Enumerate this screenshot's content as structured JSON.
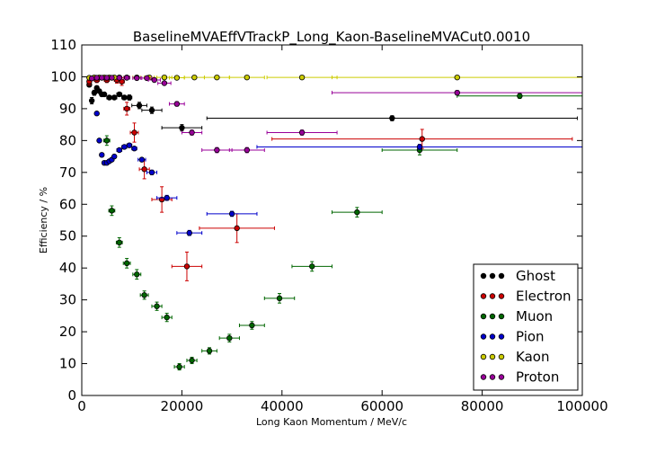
{
  "chart_data": {
    "type": "scatter",
    "title": "BaselineMVAEffVTrackP_Long_Kaon-BaselineMVACut0.0010",
    "xlabel": "Long Kaon Momentum / MeV/c",
    "ylabel": "Efficiency / %",
    "xlim": [
      0,
      100000
    ],
    "ylim": [
      0,
      110
    ],
    "xticks": [
      "0",
      "20000",
      "40000",
      "60000",
      "80000",
      "100000"
    ],
    "yticks": [
      "0",
      "10",
      "20",
      "30",
      "40",
      "50",
      "60",
      "70",
      "80",
      "90",
      "100",
      "110"
    ],
    "legend_position": "lower-right",
    "series": [
      {
        "name": "Ghost",
        "color": "#000000",
        "points": [
          {
            "x": 1500,
            "y": 97.5,
            "xerr": 400,
            "yerr": 0.6
          },
          {
            "x": 2000,
            "y": 92.5,
            "xerr": 300,
            "yerr": 1.0
          },
          {
            "x": 2500,
            "y": 95,
            "xerr": 300,
            "yerr": 0.8
          },
          {
            "x": 3000,
            "y": 96.5,
            "xerr": 300,
            "yerr": 0.6
          },
          {
            "x": 3500,
            "y": 95.5,
            "xerr": 300,
            "yerr": 0.6
          },
          {
            "x": 4000,
            "y": 94.5,
            "xerr": 300,
            "yerr": 0.6
          },
          {
            "x": 4500,
            "y": 94.5,
            "xerr": 300,
            "yerr": 0.6
          },
          {
            "x": 5500,
            "y": 93.5,
            "xerr": 500,
            "yerr": 0.6
          },
          {
            "x": 6500,
            "y": 93.5,
            "xerr": 500,
            "yerr": 0.6
          },
          {
            "x": 7500,
            "y": 94.5,
            "xerr": 500,
            "yerr": 0.6
          },
          {
            "x": 8500,
            "y": 93.5,
            "xerr": 500,
            "yerr": 0.7
          },
          {
            "x": 9500,
            "y": 93.5,
            "xerr": 500,
            "yerr": 0.8
          },
          {
            "x": 11500,
            "y": 91,
            "xerr": 1500,
            "yerr": 1.0
          },
          {
            "x": 14000,
            "y": 89.5,
            "xerr": 2000,
            "yerr": 1.0
          },
          {
            "x": 20000,
            "y": 84,
            "xerr": 4000,
            "yerr": 1.0
          },
          {
            "x": 62000,
            "y": 87,
            "xerr": 37000,
            "yerr": 0.8
          }
        ]
      },
      {
        "name": "Electron",
        "color": "#cc0000",
        "points": [
          {
            "x": 1500,
            "y": 98.5,
            "xerr": 400,
            "yerr": 1.0
          },
          {
            "x": 3000,
            "y": 99,
            "xerr": 500,
            "yerr": 0.8
          },
          {
            "x": 5000,
            "y": 99,
            "xerr": 500,
            "yerr": 0.8
          },
          {
            "x": 7000,
            "y": 99,
            "xerr": 500,
            "yerr": 1.0
          },
          {
            "x": 8000,
            "y": 98.5,
            "xerr": 500,
            "yerr": 1.2
          },
          {
            "x": 9000,
            "y": 90,
            "xerr": 600,
            "yerr": 2.0
          },
          {
            "x": 10500,
            "y": 82.5,
            "xerr": 800,
            "yerr": 3.0
          },
          {
            "x": 12500,
            "y": 71,
            "xerr": 1000,
            "yerr": 3.0
          },
          {
            "x": 16000,
            "y": 61.5,
            "xerr": 2000,
            "yerr": 4.0
          },
          {
            "x": 21000,
            "y": 40.5,
            "xerr": 3000,
            "yerr": 4.5
          },
          {
            "x": 31000,
            "y": 52.5,
            "xerr": 7500,
            "yerr": 4.5
          },
          {
            "x": 68000,
            "y": 80.5,
            "xerr": 30000,
            "yerr": 3.0
          }
        ]
      },
      {
        "name": "Muon",
        "color": "#006600",
        "points": [
          {
            "x": 5000,
            "y": 80,
            "xerr": 600,
            "yerr": 1.5
          },
          {
            "x": 6000,
            "y": 58,
            "xerr": 600,
            "yerr": 1.5
          },
          {
            "x": 7500,
            "y": 48,
            "xerr": 600,
            "yerr": 1.5
          },
          {
            "x": 9000,
            "y": 41.5,
            "xerr": 700,
            "yerr": 1.5
          },
          {
            "x": 11000,
            "y": 38,
            "xerr": 800,
            "yerr": 1.5
          },
          {
            "x": 12500,
            "y": 31.5,
            "xerr": 800,
            "yerr": 1.3
          },
          {
            "x": 15000,
            "y": 28,
            "xerr": 1000,
            "yerr": 1.3
          },
          {
            "x": 17000,
            "y": 24.5,
            "xerr": 1000,
            "yerr": 1.3
          },
          {
            "x": 19500,
            "y": 9,
            "xerr": 1000,
            "yerr": 1.0
          },
          {
            "x": 22000,
            "y": 11,
            "xerr": 1000,
            "yerr": 1.0
          },
          {
            "x": 25500,
            "y": 14,
            "xerr": 1500,
            "yerr": 1.0
          },
          {
            "x": 29500,
            "y": 18,
            "xerr": 2000,
            "yerr": 1.2
          },
          {
            "x": 34000,
            "y": 22,
            "xerr": 2500,
            "yerr": 1.2
          },
          {
            "x": 39500,
            "y": 30.5,
            "xerr": 3000,
            "yerr": 1.5
          },
          {
            "x": 46000,
            "y": 40.5,
            "xerr": 4000,
            "yerr": 1.5
          },
          {
            "x": 55000,
            "y": 57.5,
            "xerr": 5000,
            "yerr": 1.5
          },
          {
            "x": 67500,
            "y": 77,
            "xerr": 7500,
            "yerr": 1.5
          },
          {
            "x": 87500,
            "y": 94,
            "xerr": 12500,
            "yerr": 0.8
          }
        ]
      },
      {
        "name": "Pion",
        "color": "#0000cc",
        "points": [
          {
            "x": 3000,
            "y": 88.5,
            "xerr": 300,
            "yerr": 0.5
          },
          {
            "x": 3500,
            "y": 80,
            "xerr": 300,
            "yerr": 0.5
          },
          {
            "x": 4000,
            "y": 75.5,
            "xerr": 300,
            "yerr": 0.5
          },
          {
            "x": 4500,
            "y": 73,
            "xerr": 300,
            "yerr": 0.5
          },
          {
            "x": 5000,
            "y": 73,
            "xerr": 300,
            "yerr": 0.5
          },
          {
            "x": 5500,
            "y": 73.5,
            "xerr": 300,
            "yerr": 0.5
          },
          {
            "x": 6000,
            "y": 74,
            "xerr": 300,
            "yerr": 0.5
          },
          {
            "x": 6500,
            "y": 75,
            "xerr": 300,
            "yerr": 0.5
          },
          {
            "x": 7500,
            "y": 77,
            "xerr": 500,
            "yerr": 0.5
          },
          {
            "x": 8500,
            "y": 78,
            "xerr": 500,
            "yerr": 0.5
          },
          {
            "x": 9500,
            "y": 78.5,
            "xerr": 500,
            "yerr": 0.5
          },
          {
            "x": 10500,
            "y": 77.5,
            "xerr": 500,
            "yerr": 0.5
          },
          {
            "x": 12000,
            "y": 74,
            "xerr": 750,
            "yerr": 0.6
          },
          {
            "x": 14000,
            "y": 70,
            "xerr": 1000,
            "yerr": 0.7
          },
          {
            "x": 17000,
            "y": 62,
            "xerr": 2000,
            "yerr": 0.8
          },
          {
            "x": 21500,
            "y": 51,
            "xerr": 2500,
            "yerr": 0.8
          },
          {
            "x": 30000,
            "y": 57,
            "xerr": 5000,
            "yerr": 0.8
          },
          {
            "x": 67500,
            "y": 78,
            "xerr": 32500,
            "yerr": 0.8
          }
        ]
      },
      {
        "name": "Kaon",
        "color": "#cccc00",
        "points": [
          {
            "x": 1500,
            "y": 99.7,
            "xerr": 400,
            "yerr": 0.2
          },
          {
            "x": 2500,
            "y": 99.8,
            "xerr": 400,
            "yerr": 0.2
          },
          {
            "x": 3500,
            "y": 99.8,
            "xerr": 400,
            "yerr": 0.2
          },
          {
            "x": 4500,
            "y": 99.8,
            "xerr": 400,
            "yerr": 0.2
          },
          {
            "x": 5500,
            "y": 99.8,
            "xerr": 400,
            "yerr": 0.2
          },
          {
            "x": 6500,
            "y": 99.8,
            "xerr": 400,
            "yerr": 0.2
          },
          {
            "x": 7500,
            "y": 99.8,
            "xerr": 400,
            "yerr": 0.2
          },
          {
            "x": 9000,
            "y": 99.8,
            "xerr": 600,
            "yerr": 0.2
          },
          {
            "x": 11000,
            "y": 99.8,
            "xerr": 800,
            "yerr": 0.2
          },
          {
            "x": 13500,
            "y": 99.8,
            "xerr": 1000,
            "yerr": 0.2
          },
          {
            "x": 16500,
            "y": 99.8,
            "xerr": 1500,
            "yerr": 0.2
          },
          {
            "x": 19000,
            "y": 99.7,
            "xerr": 1500,
            "yerr": 0.2
          },
          {
            "x": 22500,
            "y": 99.8,
            "xerr": 2000,
            "yerr": 0.2
          },
          {
            "x": 27000,
            "y": 99.8,
            "xerr": 2500,
            "yerr": 0.2
          },
          {
            "x": 33000,
            "y": 99.8,
            "xerr": 3500,
            "yerr": 0.2
          },
          {
            "x": 44000,
            "y": 99.8,
            "xerr": 7000,
            "yerr": 0.2
          },
          {
            "x": 75000,
            "y": 99.8,
            "xerr": 25000,
            "yerr": 0.2
          }
        ]
      },
      {
        "name": "Proton",
        "color": "#990099",
        "points": [
          {
            "x": 2000,
            "y": 99.5,
            "xerr": 400,
            "yerr": 0.4
          },
          {
            "x": 3000,
            "y": 99.7,
            "xerr": 400,
            "yerr": 0.3
          },
          {
            "x": 4000,
            "y": 99.7,
            "xerr": 400,
            "yerr": 0.3
          },
          {
            "x": 5000,
            "y": 99.7,
            "xerr": 400,
            "yerr": 0.3
          },
          {
            "x": 6000,
            "y": 99.7,
            "xerr": 400,
            "yerr": 0.3
          },
          {
            "x": 7500,
            "y": 99.7,
            "xerr": 500,
            "yerr": 0.3
          },
          {
            "x": 9000,
            "y": 99.7,
            "xerr": 600,
            "yerr": 0.3
          },
          {
            "x": 11000,
            "y": 99.6,
            "xerr": 800,
            "yerr": 0.3
          },
          {
            "x": 13000,
            "y": 99.6,
            "xerr": 1000,
            "yerr": 0.3
          },
          {
            "x": 14500,
            "y": 99,
            "xerr": 1200,
            "yerr": 0.4
          },
          {
            "x": 16500,
            "y": 98,
            "xerr": 1300,
            "yerr": 0.5
          },
          {
            "x": 19000,
            "y": 91.5,
            "xerr": 1500,
            "yerr": 0.7
          },
          {
            "x": 22000,
            "y": 82.5,
            "xerr": 2000,
            "yerr": 0.8
          },
          {
            "x": 27000,
            "y": 77,
            "xerr": 3000,
            "yerr": 0.8
          },
          {
            "x": 33000,
            "y": 77,
            "xerr": 3500,
            "yerr": 0.8
          },
          {
            "x": 44000,
            "y": 82.5,
            "xerr": 7000,
            "yerr": 0.8
          },
          {
            "x": 75000,
            "y": 95,
            "xerr": 25000,
            "yerr": 0.7
          }
        ]
      }
    ]
  }
}
